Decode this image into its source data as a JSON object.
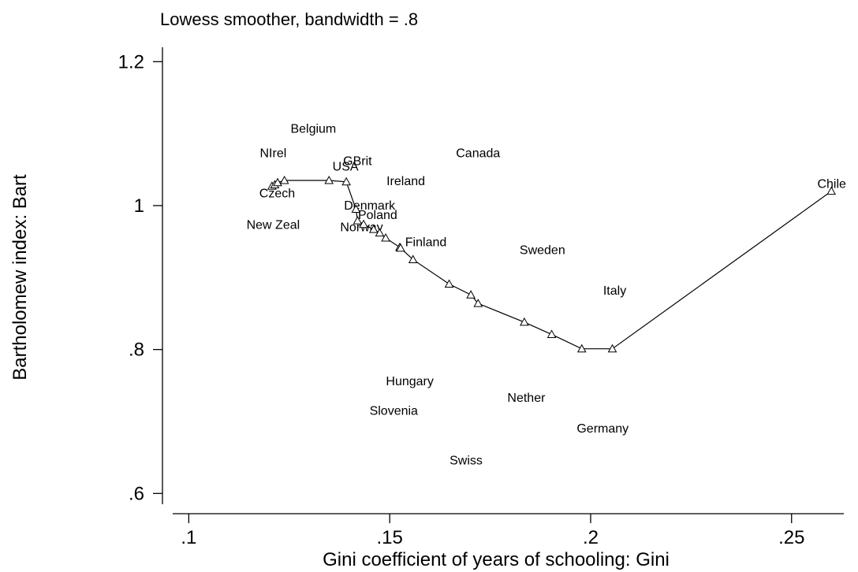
{
  "chart_data": {
    "type": "scatter",
    "subtitle": "Lowess smoother, bandwidth = .8",
    "xlabel": "Gini coefficient of years of schooling: Gini",
    "ylabel": "Bartholomew index: Bart",
    "xlim": [
      0.096,
      0.263
    ],
    "ylim": [
      0.585,
      1.22
    ],
    "xticks": [
      0.1,
      0.15,
      0.2,
      0.25
    ],
    "xtick_labels": [
      ".1",
      ".15",
      ".2",
      ".25"
    ],
    "yticks": [
      0.6,
      0.8,
      1.0,
      1.2
    ],
    "ytick_labels": [
      ".6",
      ".8",
      "1",
      "1.2"
    ],
    "grid": false,
    "legend": "none",
    "labeled_points": [
      {
        "label": "Belgium",
        "x": 0.131,
        "y": 1.108
      },
      {
        "label": "NIrel",
        "x": 0.121,
        "y": 1.074
      },
      {
        "label": "GBrit",
        "x": 0.142,
        "y": 1.063
      },
      {
        "label": "USA",
        "x": 0.139,
        "y": 1.055
      },
      {
        "label": "Canada",
        "x": 0.172,
        "y": 1.074
      },
      {
        "label": "Ireland",
        "x": 0.154,
        "y": 1.035
      },
      {
        "label": "Czech",
        "x": 0.122,
        "y": 1.018
      },
      {
        "label": "Chile",
        "x": 0.26,
        "y": 1.031
      },
      {
        "label": "Denmark",
        "x": 0.145,
        "y": 1.001
      },
      {
        "label": "Poland",
        "x": 0.147,
        "y": 0.988
      },
      {
        "label": "New Zeal",
        "x": 0.121,
        "y": 0.974
      },
      {
        "label": "Norway",
        "x": 0.143,
        "y": 0.971
      },
      {
        "label": "Finland",
        "x": 0.159,
        "y": 0.95
      },
      {
        "label": "Sweden",
        "x": 0.188,
        "y": 0.939
      },
      {
        "label": "Italy",
        "x": 0.206,
        "y": 0.883
      },
      {
        "label": "Hungary",
        "x": 0.155,
        "y": 0.757
      },
      {
        "label": "Nether",
        "x": 0.184,
        "y": 0.734
      },
      {
        "label": "Slovenia",
        "x": 0.151,
        "y": 0.716
      },
      {
        "label": "Germany",
        "x": 0.203,
        "y": 0.691
      },
      {
        "label": "Swiss",
        "x": 0.169,
        "y": 0.647
      }
    ],
    "series": [
      {
        "marker": "triangle",
        "x": [
          0.1207,
          0.1214,
          0.1221,
          0.1238,
          0.1349,
          0.1392,
          0.1416,
          0.142,
          0.1435,
          0.146,
          0.1475,
          0.149,
          0.1525,
          0.1527,
          0.1558,
          0.1648,
          0.1702,
          0.172,
          0.1835,
          0.1903,
          0.1978,
          0.2054,
          0.2599
        ],
        "y": [
          1.027,
          1.029,
          1.032,
          1.035,
          1.035,
          1.033,
          0.995,
          0.979,
          0.974,
          0.967,
          0.962,
          0.955,
          0.942,
          0.941,
          0.925,
          0.891,
          0.876,
          0.864,
          0.838,
          0.821,
          0.801,
          0.801,
          1.02
        ]
      }
    ]
  }
}
